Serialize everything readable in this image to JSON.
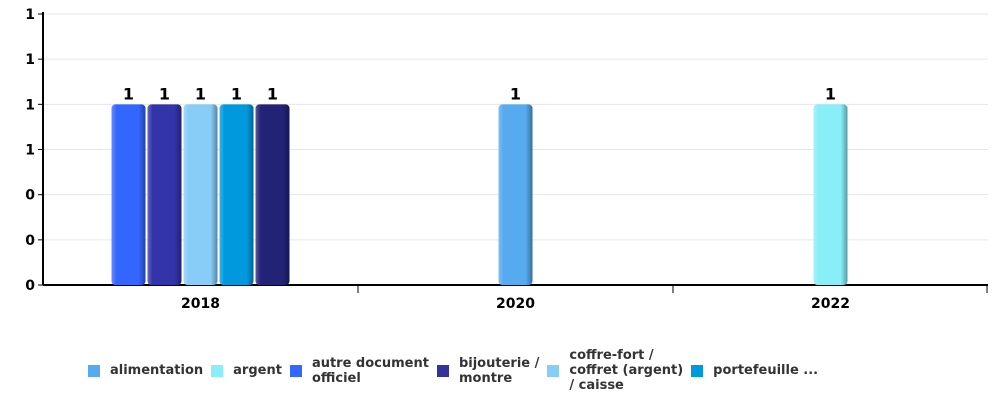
{
  "chart_data": {
    "type": "bar",
    "categories": [
      "2018",
      "2020",
      "2022"
    ],
    "y_tick_labels": [
      "0",
      "0",
      "0",
      "1",
      "1",
      "1",
      "1"
    ],
    "ylim": [
      0,
      1.5
    ],
    "grid": true,
    "legend_position": "bottom",
    "series": [
      {
        "name": "alimentation",
        "color": "#55aaf0",
        "values": [
          null,
          1,
          null
        ]
      },
      {
        "name": "argent",
        "color": "#88eef8",
        "values": [
          null,
          null,
          1
        ]
      },
      {
        "name": "autre document officiel",
        "color": "#3366ff",
        "values": [
          1,
          null,
          null
        ]
      },
      {
        "name": "bijouterie / montre",
        "color": "#3333aa",
        "values": [
          1,
          null,
          null
        ]
      },
      {
        "name": "coffre-fort / coffret (argent) / caisse",
        "color": "#88ccf8",
        "values": [
          1,
          null,
          null
        ]
      },
      {
        "name": "portefeuille ...",
        "color": "#0099dd",
        "values": [
          1,
          null,
          null
        ]
      },
      {
        "name": "",
        "color": "#222277",
        "values": [
          1,
          null,
          null
        ]
      }
    ]
  },
  "legend": [
    {
      "label": "alimentation",
      "color": "#55aaf0"
    },
    {
      "label": "argent",
      "color": "#88eef8"
    },
    {
      "label": "autre document\nofficiel",
      "color": "#3366ff"
    },
    {
      "label": "bijouterie /\nmontre",
      "color": "#333399"
    },
    {
      "label": "coffre-fort /\ncoffret (argent)\n/ caisse",
      "color": "#88ccf8"
    },
    {
      "label": "portefeuille ...",
      "color": "#0099dd"
    }
  ]
}
